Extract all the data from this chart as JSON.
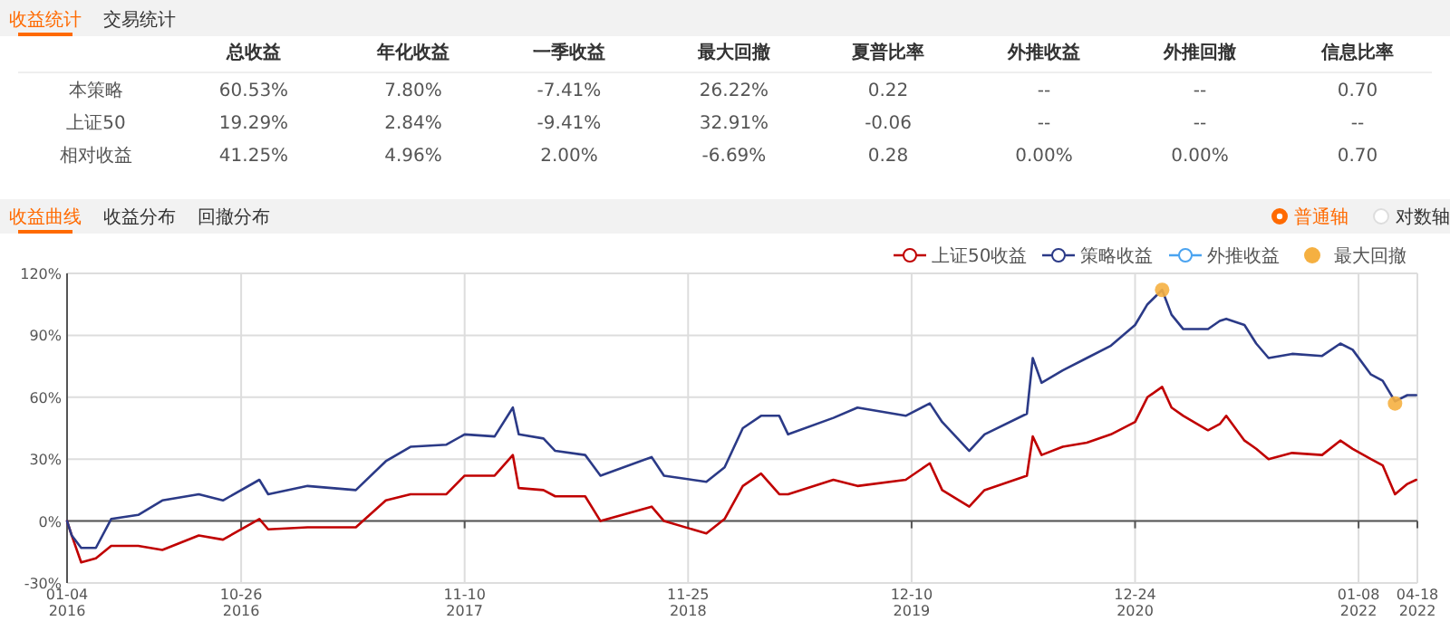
{
  "chart_data": [
    {
      "type": "other",
      "annotations": [
        "收益统计",
        "交易统计",
        "总收益",
        "年化收益",
        "一季收益",
        "最大回撤",
        "夏普比率",
        "外推收益",
        "外推回撤",
        "信息比率",
        "本策略",
        "60.53%",
        "7.80%",
        "-7.41%",
        "26.22%",
        "0.22",
        "--",
        "--",
        "0.70",
        "上证50",
        "19.29%",
        "2.84%",
        "-9.41%",
        "32.91%",
        "-0.06",
        "--",
        "--",
        "--",
        "相对收益",
        "41.25%",
        "4.96%",
        "2.00%",
        "-6.69%",
        "0.28",
        "0.00%",
        "0.00%",
        "0.70"
      ]
    },
    {
      "type": "line",
      "annotations": [
        "收益曲线",
        "收益分布",
        "回撤分布",
        "普通轴",
        "对数轴"
      ],
      "x": [
        "2016-01-04",
        "2016-01-12",
        "2016-01-28",
        "2016-02-22",
        "2016-03-19",
        "2016-05-04",
        "2016-06-14",
        "2016-08-15",
        "2016-09-25",
        "2016-11-26",
        "2016-12-11",
        "2017-02-16",
        "2017-05-09",
        "2017-06-29",
        "2017-08-10",
        "2017-10-10",
        "2017-11-10",
        "2017-12-31",
        "2018-01-31",
        "2018-02-10",
        "2018-03-24",
        "2018-04-13",
        "2018-06-03",
        "2018-06-29",
        "2018-09-24",
        "2018-10-15",
        "2018-12-26",
        "2019-01-26",
        "2019-02-26",
        "2019-03-29",
        "2019-04-29",
        "2019-05-14",
        "2019-07-30",
        "2019-09-09",
        "2019-11-30",
        "2020-01-10",
        "2020-01-31",
        "2020-03-17",
        "2020-04-12",
        "2020-06-23",
        "2020-07-03",
        "2020-07-18",
        "2020-08-23",
        "2020-10-03",
        "2020-11-13",
        "2020-12-24",
        "2021-01-14",
        "2021-02-08",
        "2021-02-24",
        "2021-03-16",
        "2021-04-27",
        "2021-05-17",
        "2021-05-28",
        "2021-06-28",
        "2021-07-18",
        "2021-08-08",
        "2021-09-17",
        "2021-11-07",
        "2021-12-08",
        "2021-12-29",
        "2022-01-29",
        "2022-02-18",
        "2022-03-11",
        "2022-04-01",
        "2022-04-16"
      ],
      "series": [
        {
          "name": "上证50收益",
          "color": "#c00000",
          "values": [
            0,
            -7,
            -20,
            -18,
            -12,
            -12,
            -14,
            -7,
            -9,
            1,
            -4,
            -3,
            -3,
            10,
            13,
            13,
            22,
            22,
            32,
            16,
            15,
            12,
            12,
            0,
            7,
            0,
            -6,
            1,
            17,
            23,
            13,
            13,
            20,
            17,
            20,
            28,
            15,
            7,
            15,
            22,
            41,
            32,
            36,
            38,
            42,
            48,
            60,
            65,
            55,
            51,
            44,
            47,
            51,
            39,
            35,
            30,
            33,
            32,
            39,
            35,
            30,
            27,
            13,
            18,
            20
          ]
        },
        {
          "name": "策略收益",
          "color": "#2b3a87",
          "values": [
            0,
            -7,
            -13,
            -13,
            1,
            3,
            10,
            13,
            10,
            20,
            13,
            17,
            15,
            29,
            36,
            37,
            42,
            41,
            55,
            42,
            40,
            34,
            32,
            22,
            31,
            22,
            19,
            26,
            45,
            51,
            51,
            42,
            50,
            55,
            51,
            57,
            48,
            34,
            42,
            52,
            79,
            67,
            73,
            79,
            85,
            95,
            105,
            112,
            100,
            93,
            93,
            97,
            98,
            95,
            86,
            79,
            81,
            80,
            86,
            83,
            71,
            68,
            58,
            61,
            61
          ]
        },
        {
          "name": "外推收益",
          "color": "#4aa3f0",
          "values": [
            null,
            null,
            null,
            null,
            null,
            null,
            null,
            null,
            null,
            null,
            null,
            null,
            null,
            null,
            null,
            null,
            null,
            null,
            null,
            null,
            null,
            null,
            null,
            null,
            null,
            null,
            null,
            null,
            null,
            null,
            null,
            null,
            null,
            null,
            null,
            null,
            null,
            null,
            null,
            null,
            null,
            null,
            null,
            null,
            null,
            null,
            null,
            null,
            null,
            null,
            null,
            null,
            null,
            null,
            null,
            null,
            null,
            null,
            null,
            null,
            null,
            null,
            null,
            null,
            null
          ]
        },
        {
          "name": "最大回撤",
          "type": "scatter",
          "color": "#f5b041",
          "x": [
            "2021-02-08",
            "2022-03-11"
          ],
          "values": [
            112,
            57
          ]
        }
      ],
      "xlim": [
        "2016-01-04",
        "2022-04-18"
      ],
      "xticks": [
        {
          "value": "2016-01-04",
          "label": "01-04\n2016"
        },
        {
          "value": "2016-10-26",
          "label": "10-26\n2016"
        },
        {
          "value": "2017-11-10",
          "label": "11-10\n2017"
        },
        {
          "value": "2018-11-25",
          "label": "11-25\n2018"
        },
        {
          "value": "2019-12-10",
          "label": "12-10\n2019"
        },
        {
          "value": "2020-12-24",
          "label": "12-24\n2020"
        },
        {
          "value": "2022-01-08",
          "label": "01-08\n2022"
        },
        {
          "value": "2022-04-18",
          "label": "04-18\n2022"
        }
      ],
      "ylim": [
        -30,
        120
      ],
      "yticks": [
        {
          "value": -30,
          "label": "-30%"
        },
        {
          "value": 0,
          "label": "0%"
        },
        {
          "value": 30,
          "label": "30%"
        },
        {
          "value": 60,
          "label": "60%"
        },
        {
          "value": 90,
          "label": "90%"
        },
        {
          "value": 120,
          "label": "120%"
        }
      ],
      "grid": true,
      "legend": "top right"
    }
  ]
}
